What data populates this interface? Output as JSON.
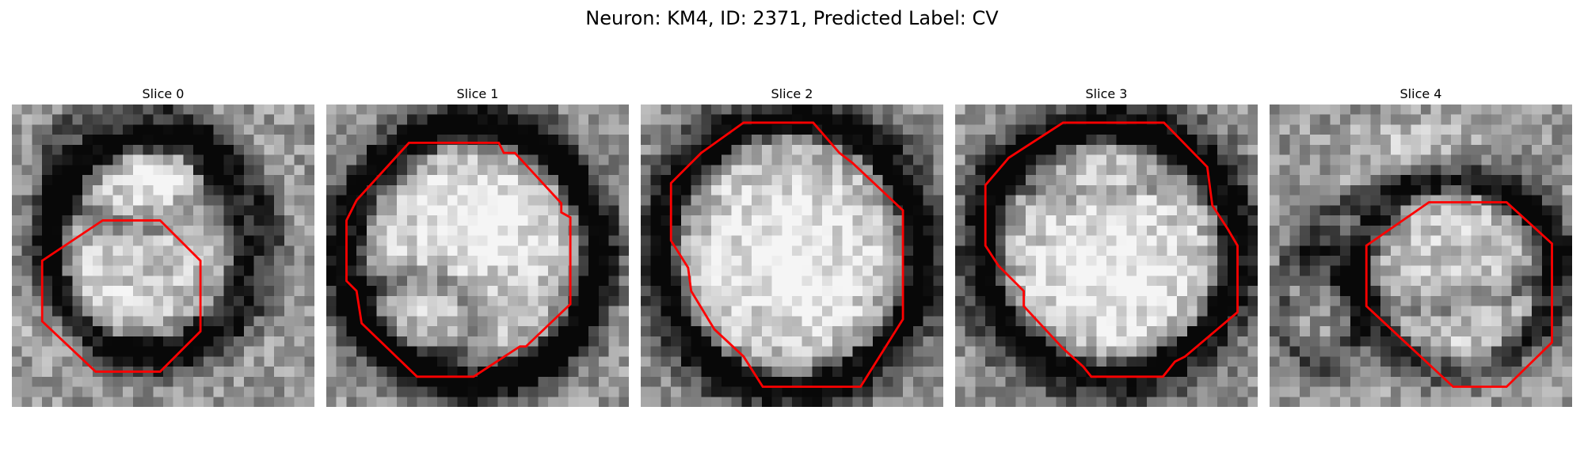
{
  "figure": {
    "title": "Neuron: KM4, ID: 2371, Predicted Label: CV"
  },
  "colors": {
    "outline": "#ff0000",
    "background": "#ffffff"
  },
  "panels": [
    {
      "title": "Slice 0",
      "image": "grayscale-em-patch",
      "outline": "red-octagon-contour",
      "vesicle": {
        "cx": 13.3,
        "cy": 14,
        "rx": 9.3,
        "ry": 10.3
      },
      "dark_bands": [
        {
          "cx": 15,
          "cy": 14,
          "rx": 11,
          "ry": 11,
          "w": 3
        },
        {
          "cx": 12,
          "cy": 6,
          "rx": 8,
          "ry": 6,
          "w": 3
        }
      ],
      "bright_spots": [
        {
          "cx": 7,
          "cy": 22,
          "rx": 6,
          "ry": 5
        },
        {
          "cx": 15,
          "cy": 6,
          "rx": 6,
          "ry": 5
        }
      ]
    },
    {
      "title": "Slice 1",
      "image": "grayscale-em-patch",
      "outline": "red-octagon-contour",
      "vesicle": {
        "cx": 14.6,
        "cy": 14.8,
        "rx": 11.9,
        "ry": 12.3
      },
      "dark_bands": [
        {
          "cx": 14,
          "cy": 15,
          "rx": 13,
          "ry": 13,
          "w": 2.6
        },
        {
          "cx": 9,
          "cy": 21,
          "rx": 6,
          "ry": 4,
          "w": 3
        }
      ],
      "bright_spots": [
        {
          "cx": 15,
          "cy": 11,
          "rx": 8,
          "ry": 7
        }
      ]
    },
    {
      "title": "Slice 2",
      "image": "grayscale-em-patch",
      "outline": "red-octagon-contour",
      "vesicle": {
        "cx": 14.8,
        "cy": 14.8,
        "rx": 12.7,
        "ry": 13.2
      },
      "dark_bands": [
        {
          "cx": 15,
          "cy": 15,
          "rx": 12.5,
          "ry": 13,
          "w": 2.4
        }
      ],
      "bright_spots": [
        {
          "cx": 15,
          "cy": 15,
          "rx": 9,
          "ry": 9
        }
      ]
    },
    {
      "title": "Slice 3",
      "image": "grayscale-em-patch",
      "outline": "red-octagon-contour",
      "vesicle": {
        "cx": 15.3,
        "cy": 14.5,
        "rx": 12.5,
        "ry": 12.5
      },
      "dark_bands": [
        {
          "cx": 15.3,
          "cy": 14.5,
          "rx": 12,
          "ry": 12,
          "w": 2.8
        },
        {
          "cx": 13,
          "cy": 6,
          "rx": 9,
          "ry": 3,
          "w": 2
        }
      ],
      "bright_spots": [
        {
          "cx": 16,
          "cy": 17,
          "rx": 9,
          "ry": 8
        }
      ]
    },
    {
      "title": "Slice 4",
      "image": "grayscale-em-patch",
      "outline": "red-octagon-contour",
      "vesicle": {
        "cx": 18.6,
        "cy": 16.7,
        "rx": 9.3,
        "ry": 9.3
      },
      "dark_bands": [
        {
          "cx": 16,
          "cy": 14,
          "rx": 12,
          "ry": 6,
          "w": 3
        },
        {
          "cx": 5,
          "cy": 20,
          "rx": 4,
          "ry": 6,
          "w": 3
        }
      ],
      "bright_spots": [
        {
          "cx": 15,
          "cy": 5,
          "rx": 8,
          "ry": 4
        },
        {
          "cx": 20,
          "cy": 26,
          "rx": 8,
          "ry": 3
        }
      ]
    }
  ]
}
